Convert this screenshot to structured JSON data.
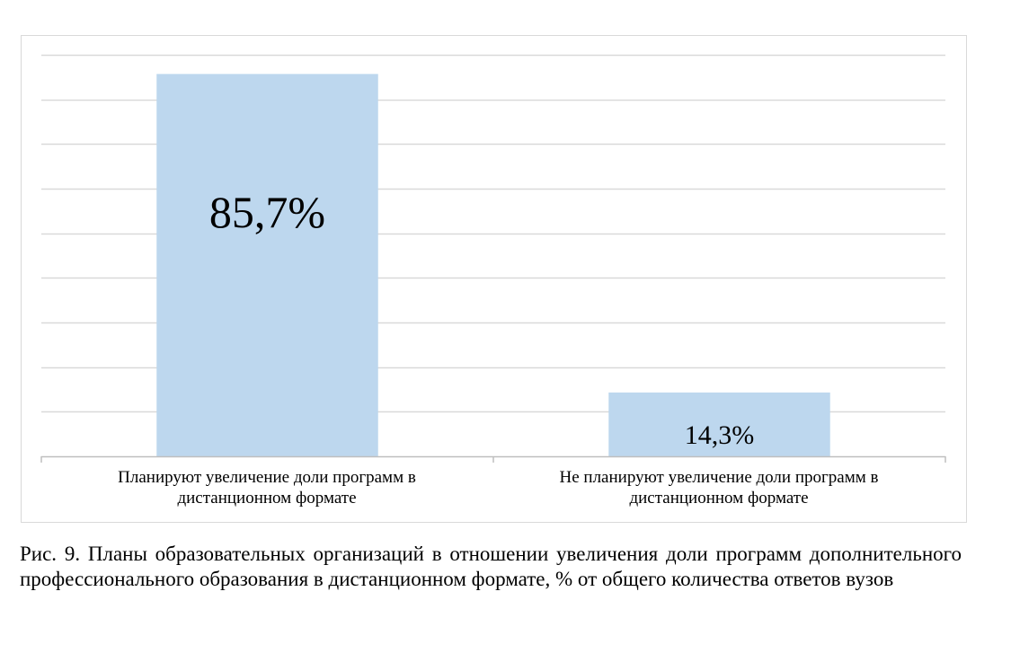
{
  "chart_data": {
    "type": "bar",
    "categories": [
      "Планируют увеличение доли программ в дистанционном формате",
      "Не планируют увеличение доли программ в дистанционном формате"
    ],
    "values": [
      85.7,
      14.3
    ],
    "data_labels": [
      "85,7%",
      "14,3%"
    ],
    "unit": "%",
    "ylim": [
      0,
      90
    ],
    "grid": true,
    "bar_color": "#bdd7ee",
    "grid_color": "#d9d9d9",
    "axis_color": "#bfbfbf"
  },
  "caption": "Рис. 9. Планы образовательных организаций в отношении увеличения доли программ дополнительного профессионального образования в дистанционном формате, % от общего количества ответов вузов"
}
